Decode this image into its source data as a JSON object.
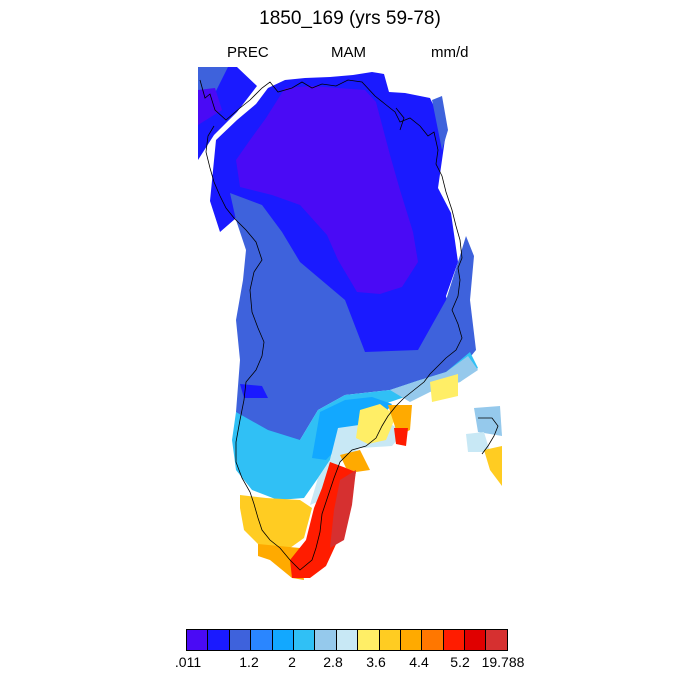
{
  "title": "1850_169 (yrs 59-78)",
  "subtitle": {
    "left": "PREC",
    "center": "MAM",
    "right": "mm/d"
  },
  "colorbar": {
    "colors": [
      "#4a0af5",
      "#1a1aff",
      "#3e62dc",
      "#2a86ff",
      "#12a8ff",
      "#30c0f5",
      "#95c9ec",
      "#c8e8f5",
      "#ffee66",
      "#ffcc22",
      "#ffaa00",
      "#ff7700",
      "#ff1c00",
      "#e00000",
      "#d63030"
    ],
    "labels": [
      ".011",
      "1.2",
      "2",
      "2.8",
      "3.6",
      "4.4",
      "5.2",
      "19.788"
    ]
  }
}
